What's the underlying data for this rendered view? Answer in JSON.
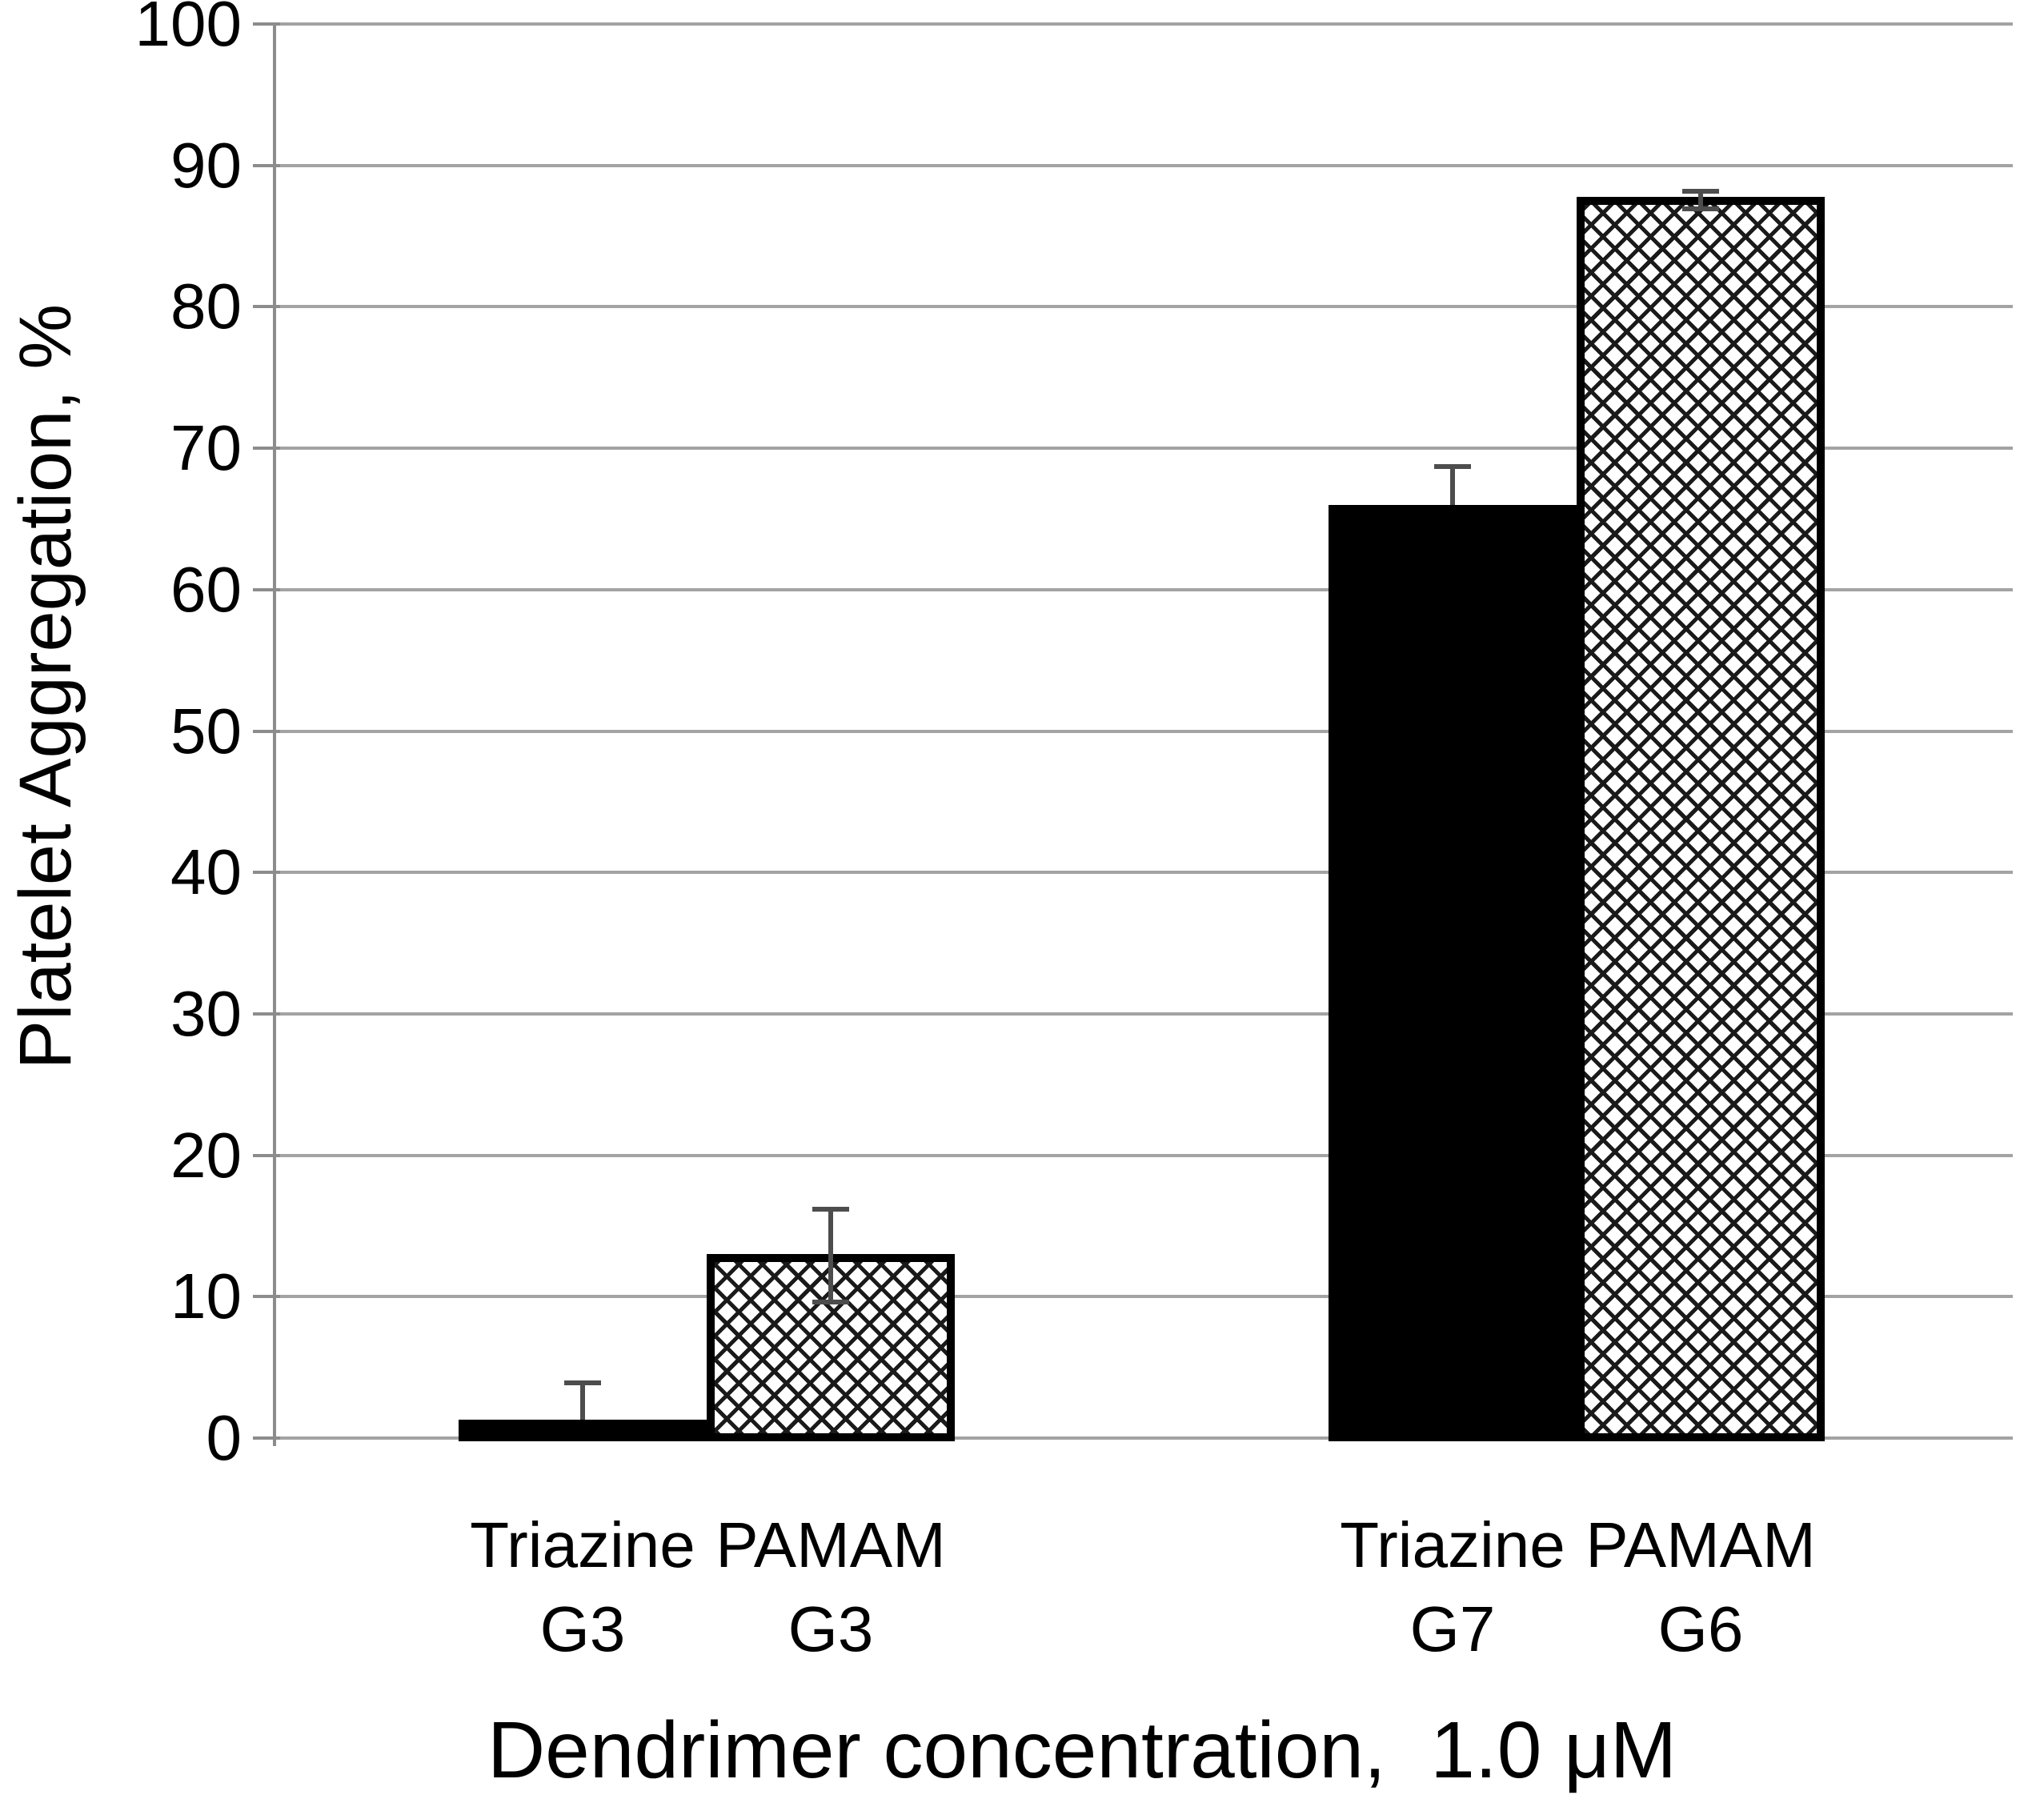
{
  "chart_data": {
    "type": "bar",
    "title": "",
    "xlabel": "Dendrimer concentration,  1.0 μM",
    "ylabel": "Platelet Aggregation, %",
    "ylim": [
      0,
      100
    ],
    "ytick_step": 10,
    "yticks": [
      0,
      10,
      20,
      30,
      40,
      50,
      60,
      70,
      80,
      90,
      100
    ],
    "grid": true,
    "legend_position": "none",
    "categories": [
      "Triazine G3",
      "PAMAM G3",
      "Triazine G7",
      "PAMAM G6"
    ],
    "category_labels": [
      {
        "line1": "Triazine",
        "line2": "G3",
        "slug": "triazine-g3"
      },
      {
        "line1": "PAMAM",
        "line2": "G3",
        "slug": "pamam-g3"
      },
      {
        "line1": "Triazine",
        "line2": "G7",
        "slug": "triazine-g7"
      },
      {
        "line1": "PAMAM",
        "line2": "G6",
        "slug": "pamam-g6"
      }
    ],
    "series": [
      {
        "name": "Platelet Aggregation %",
        "values": [
          1.3,
          13,
          66,
          87.8
        ],
        "error_high": [
          3.9,
          16.2,
          68.7,
          88.2
        ],
        "error_low": [
          1.3,
          9.6,
          66,
          86.9
        ],
        "lower_cap_visible": [
          false,
          true,
          false,
          true
        ],
        "bar_styles": [
          "solid-black",
          "crosshatch",
          "solid-black",
          "crosshatch"
        ]
      }
    ],
    "colors": {
      "bar_fill": "#000000",
      "hatch_line": "#1a1a1a",
      "hatch_background": "#ffffff",
      "gridline": "#a3a3a3",
      "axis_line": "#8c8c8c",
      "error_bar": "#4d4d4d",
      "text": "#000000",
      "background": "#ffffff"
    }
  }
}
